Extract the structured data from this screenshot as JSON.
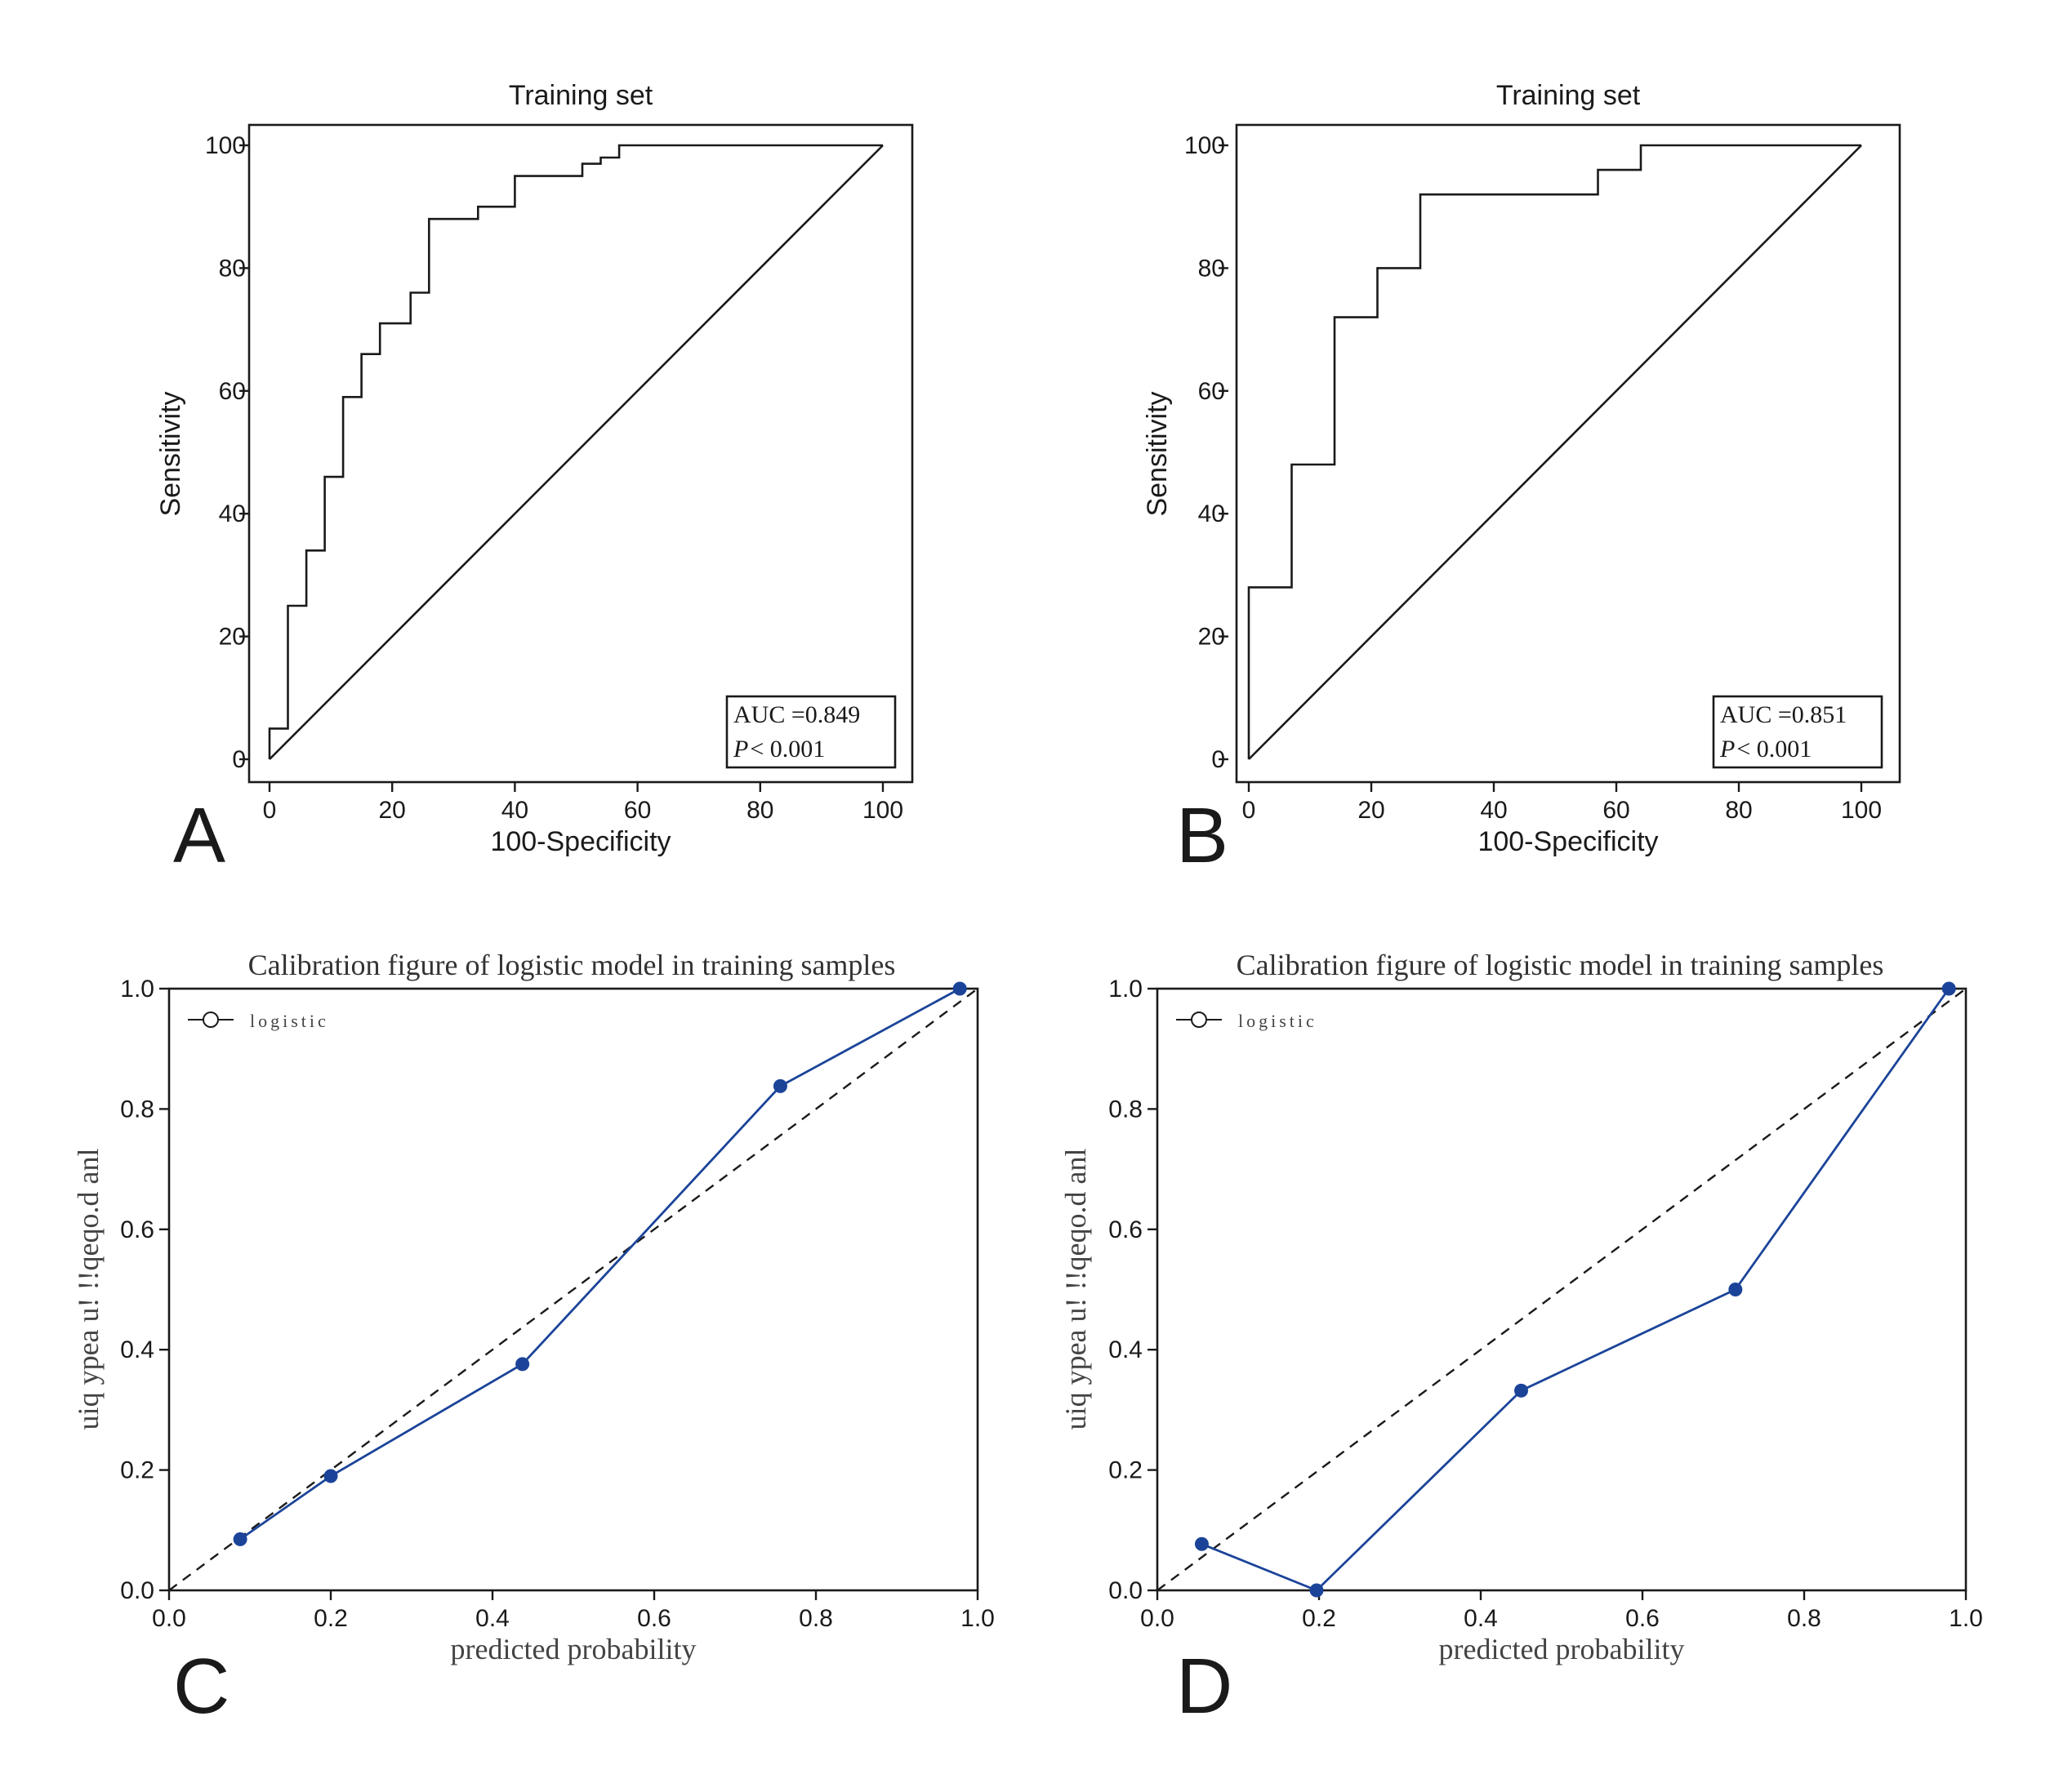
{
  "panels": [
    {
      "letter": "A",
      "chart_data": {
        "type": "line",
        "title": "Training set",
        "xlabel": "100-Specificity",
        "ylabel": "Sensitivity",
        "xlim": [
          0,
          100
        ],
        "ylim": [
          0,
          100
        ],
        "xticks": [
          "0",
          "20",
          "40",
          "60",
          "80",
          "100"
        ],
        "yticks": [
          "0",
          "20",
          "40",
          "60",
          "80",
          "100"
        ],
        "series": [
          {
            "x": [
              0,
              0,
              3,
              3,
              6,
              6,
              9,
              9,
              12,
              12,
              15,
              15,
              18,
              18,
              23,
              23,
              26,
              26,
              34,
              34,
              40,
              40,
              51,
              51,
              54,
              54,
              57,
              57,
              100
            ],
            "y": [
              0,
              5,
              5,
              25,
              25,
              34,
              34,
              46,
              46,
              59,
              59,
              66,
              66,
              71,
              71,
              76,
              76,
              88,
              88,
              90,
              90,
              95,
              95,
              97,
              97,
              98,
              98,
              100,
              100
            ]
          }
        ],
        "reference": {
          "x": [
            0,
            100
          ],
          "y": [
            0,
            100
          ]
        },
        "annotation": {
          "auc": "AUC =0.849",
          "p_italic": "P",
          "p_rest": "< 0.001"
        },
        "grid": false
      }
    },
    {
      "letter": "B",
      "chart_data": {
        "type": "line",
        "title": "Training set",
        "xlabel": "100-Specificity",
        "ylabel": "Sensitivity",
        "xlim": [
          0,
          100
        ],
        "ylim": [
          0,
          100
        ],
        "xticks": [
          "0",
          "20",
          "40",
          "60",
          "80",
          "100"
        ],
        "yticks": [
          "0",
          "20",
          "40",
          "60",
          "80",
          "100"
        ],
        "series": [
          {
            "x": [
              0,
              0,
              7,
              7,
              14,
              14,
              21,
              21,
              28,
              28,
              57,
              57,
              64,
              64,
              100
            ],
            "y": [
              0,
              28,
              28,
              48,
              48,
              72,
              72,
              80,
              80,
              92,
              92,
              96,
              96,
              100,
              100
            ]
          }
        ],
        "reference": {
          "x": [
            0,
            100
          ],
          "y": [
            0,
            100
          ]
        },
        "annotation": {
          "auc": "AUC =0.851",
          "p_italic": "P",
          "p_rest": "< 0.001"
        },
        "grid": false
      }
    },
    {
      "letter": "C",
      "chart_data": {
        "type": "line",
        "title": "Calibration figure of logistic model in training samples",
        "xlabel": "predicted probability",
        "ylabel": "uiq ypea u! !!qeqo.d anl",
        "xlim": [
          0,
          1
        ],
        "ylim": [
          0,
          1
        ],
        "xticks": [
          "0.0",
          "0.2",
          "0.4",
          "0.6",
          "0.8",
          "1.0"
        ],
        "yticks": [
          "0.0",
          "0.2",
          "0.4",
          "0.6",
          "0.8",
          "1.0"
        ],
        "legend": "logistic",
        "legend_position": "top-left",
        "series": [
          {
            "name": "logistic",
            "x": [
              0.088,
              0.2,
              0.437,
              0.756,
              0.978
            ],
            "y": [
              0.085,
              0.19,
              0.376,
              0.838,
              1.0
            ]
          }
        ],
        "reference": {
          "x": [
            0,
            1
          ],
          "y": [
            0,
            1
          ]
        },
        "grid": false
      }
    },
    {
      "letter": "D",
      "chart_data": {
        "type": "line",
        "title": "Calibration figure of logistic model in training samples",
        "xlabel": "predicted probability",
        "ylabel": "uiq ypea u! !!qeqo.d anl",
        "xlim": [
          0,
          1
        ],
        "ylim": [
          0,
          1
        ],
        "xticks": [
          "0.0",
          "0.2",
          "0.4",
          "0.6",
          "0.8",
          "1.0"
        ],
        "yticks": [
          "0.0",
          "0.2",
          "0.4",
          "0.6",
          "0.8",
          "1.0"
        ],
        "legend": "logistic",
        "legend_position": "top-left",
        "series": [
          {
            "name": "logistic",
            "x": [
              0.055,
              0.197,
              0.45,
              0.715,
              0.979
            ],
            "y": [
              0.077,
              0.0,
              0.332,
              0.5,
              1.0
            ]
          }
        ],
        "reference": {
          "x": [
            0,
            1
          ],
          "y": [
            0,
            1
          ]
        },
        "grid": false
      }
    }
  ]
}
